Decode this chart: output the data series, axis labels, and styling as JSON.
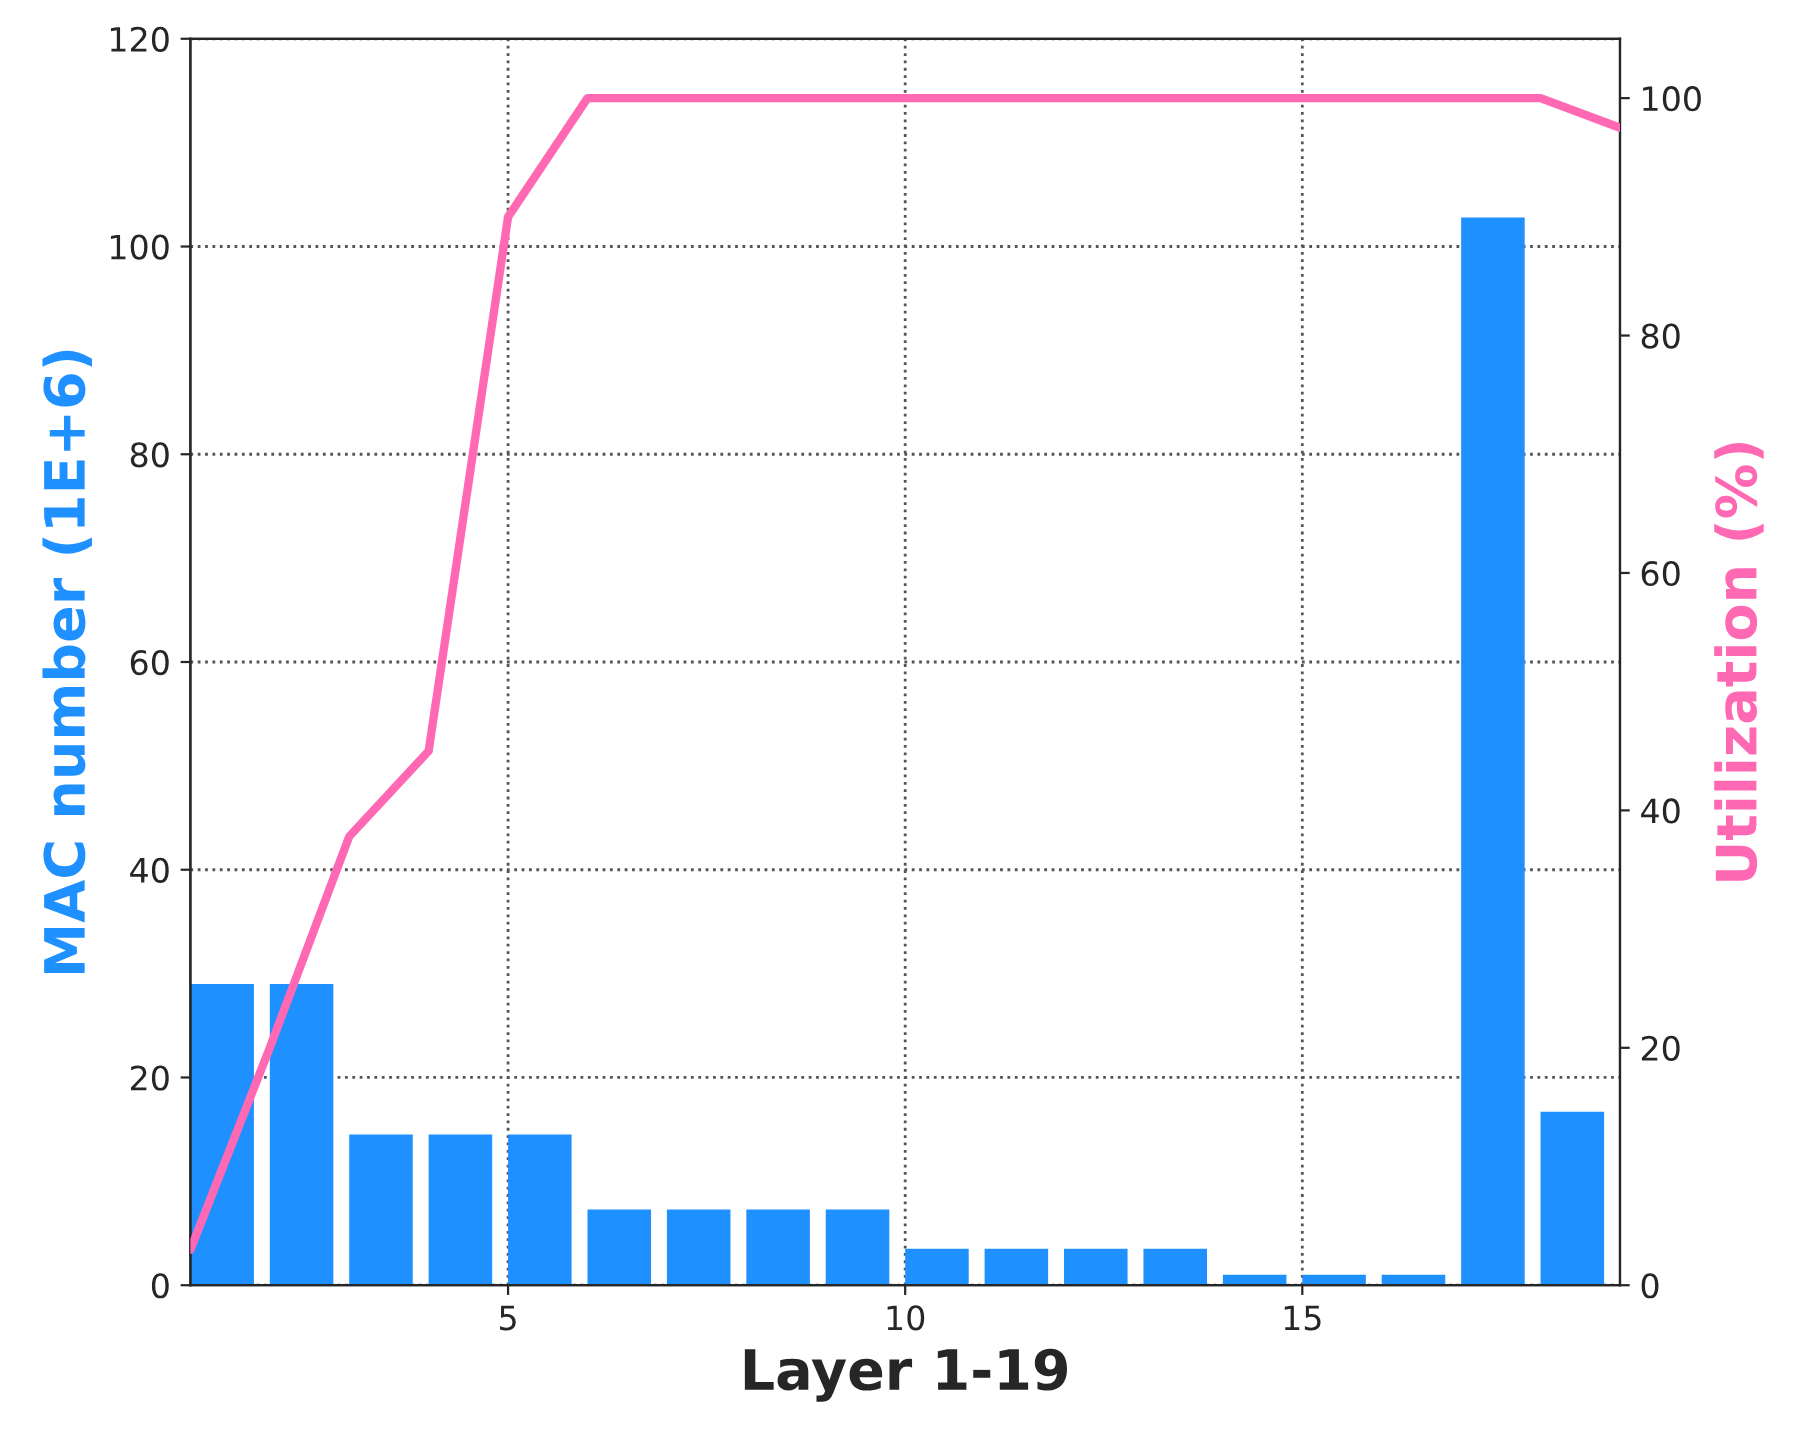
{
  "chart_data": {
    "type": "bar",
    "xlabel": "Layer 1-19",
    "ylabel": "MAC number (1E+6)",
    "y2label": "Utilization (%)",
    "xlim": [
      1,
      19
    ],
    "xticks": [
      5,
      10,
      15
    ],
    "ylim": [
      0,
      120
    ],
    "yticks": [
      0,
      20,
      40,
      60,
      80,
      100,
      120
    ],
    "y2lim": [
      0,
      105
    ],
    "y2ticks": [
      0,
      20,
      40,
      60,
      80,
      100
    ],
    "grid": true,
    "series": [
      {
        "color": "#1e90ff",
        "x": [
          1.4,
          2.4,
          3.4,
          4.4,
          5.4,
          6.4,
          7.4,
          8.4,
          9.4,
          10.4,
          11.4,
          12.4,
          13.4,
          14.4,
          15.4,
          16.4,
          17.4,
          18.4
        ],
        "values": [
          29,
          29,
          14.5,
          14.5,
          14.5,
          7.3,
          7.3,
          7.3,
          7.3,
          3.5,
          3.5,
          3.5,
          3.5,
          1,
          1,
          1,
          102.8,
          16.7
        ]
      },
      {
        "type": "line",
        "axis": "y2",
        "color": "#ff69b4",
        "x": [
          1,
          2,
          3,
          4,
          5,
          6,
          7,
          8,
          9,
          10,
          11,
          12,
          13,
          14,
          15,
          16,
          17,
          18,
          19
        ],
        "values": [
          3,
          20,
          37.8,
          45,
          90,
          100,
          100,
          100,
          100,
          100,
          100,
          100,
          100,
          100,
          100,
          100,
          100,
          100,
          97.5
        ]
      }
    ]
  }
}
